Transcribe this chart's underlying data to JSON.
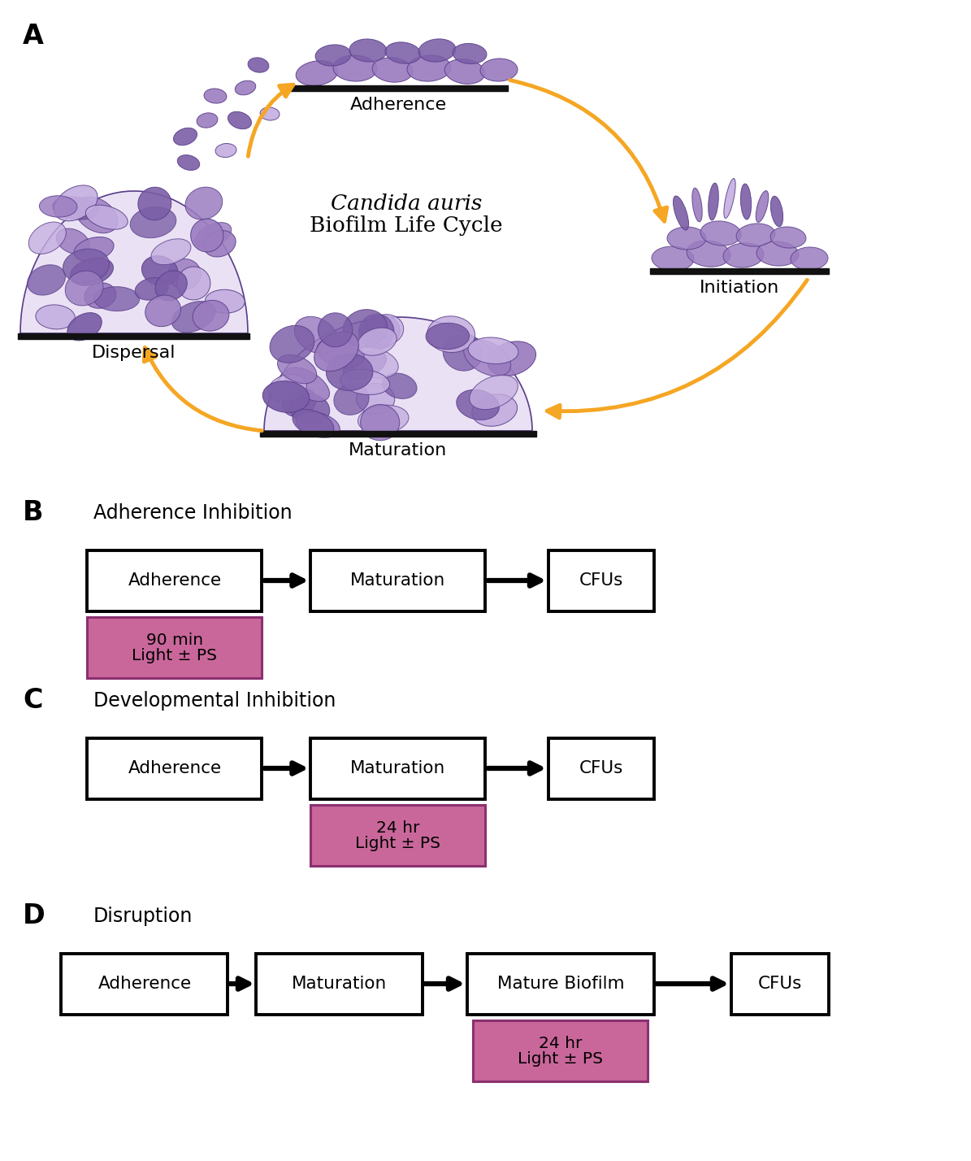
{
  "panel_A_label": "A",
  "panel_B_label": "B",
  "panel_C_label": "C",
  "panel_D_label": "D",
  "biofilm_title_italic": "Candida auris",
  "biofilm_title_normal": "Biofilm Life Cycle",
  "panel_B_title": "Adherence Inhibition",
  "panel_C_title": "Developmental Inhibition",
  "panel_D_title": "Disruption",
  "arrow_color": "#F5A623",
  "pink_color": "#C9679A",
  "cell_color_dark": "#7B5EA7",
  "cell_color_mid": "#9B7DC0",
  "cell_color_light": "#C4AEE0",
  "cell_outline": "#5A3E8A",
  "background": "#FFFFFF",
  "fig_width": 11.95,
  "fig_height": 14.28,
  "dpi": 100
}
